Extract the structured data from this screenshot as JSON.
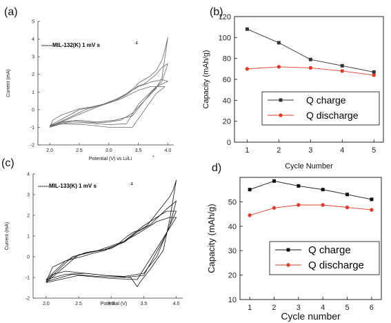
{
  "chart_data": [
    {
      "panel": "(a)",
      "type": "line",
      "legend": "------MIL-132(K) 1 mV s",
      "legend_sup": "-1",
      "xlabel": "Potential (V) vs Li/Li",
      "xlabel_sup": "+",
      "ylabel": "Current (mA)",
      "xlim": [
        1.8,
        4.1
      ],
      "ylim": [
        -2,
        5
      ],
      "xticks": [
        "2.0",
        "2.5",
        "3.0",
        "3.5",
        "4.0"
      ],
      "yticks": [
        "-2",
        "-1",
        "0",
        "1",
        "2",
        "3",
        "4",
        "5"
      ],
      "colors": {
        "curve": "#666666"
      },
      "series": [
        {
          "x": [
            2.5,
            2.7,
            2.9,
            3.1,
            3.3,
            3.45,
            3.5,
            3.6,
            3.7,
            3.8,
            3.9,
            3.95,
            4.0,
            3.9,
            3.8,
            3.6,
            3.4,
            3.2,
            3.0,
            2.8,
            2.6,
            2.4,
            2.2,
            2.05,
            2.0,
            2.05,
            2.2,
            2.5
          ],
          "y": [
            0.05,
            0.15,
            0.3,
            0.55,
            0.9,
            1.3,
            1.5,
            1.7,
            1.9,
            2.2,
            2.8,
            3.4,
            4.1,
            1.8,
            1.2,
            0.5,
            -0.2,
            -0.6,
            -0.7,
            -0.75,
            -0.7,
            -0.65,
            -0.75,
            -0.9,
            -1.0,
            -0.6,
            -0.3,
            0.05
          ]
        },
        {
          "x": [
            2.0,
            2.2,
            2.5,
            2.8,
            3.1,
            3.3,
            3.5,
            3.6,
            3.8,
            3.9,
            4.0,
            3.9,
            3.7,
            3.4,
            3.1,
            2.8,
            2.5,
            2.2,
            2.0
          ],
          "y": [
            -0.9,
            -0.55,
            0.0,
            0.2,
            0.5,
            0.85,
            1.35,
            1.45,
            2.0,
            2.4,
            2.6,
            1.6,
            0.9,
            -0.35,
            -0.6,
            -0.7,
            -0.6,
            -0.7,
            -0.9
          ]
        },
        {
          "x": [
            2.0,
            2.3,
            2.6,
            2.9,
            3.2,
            3.5,
            3.7,
            3.9,
            4.0,
            3.8,
            3.5,
            3.3,
            3.0,
            2.6,
            2.3,
            2.0
          ],
          "y": [
            -0.95,
            -0.5,
            0.0,
            0.3,
            0.7,
            1.3,
            1.55,
            1.7,
            1.6,
            1.3,
            0.3,
            -0.8,
            -0.85,
            -0.75,
            -0.75,
            -0.95
          ]
        },
        {
          "x": [
            2.0,
            2.4,
            2.8,
            3.2,
            3.5,
            3.7,
            3.95,
            3.8,
            3.4,
            3.0,
            2.6,
            2.2,
            2.0
          ],
          "y": [
            -1.0,
            -0.4,
            0.15,
            0.6,
            1.1,
            1.3,
            1.3,
            0.9,
            -1.0,
            -1.0,
            -0.85,
            -0.8,
            -1.0
          ]
        }
      ]
    },
    {
      "panel": "(b)",
      "type": "line",
      "xlabel": "Cycle Number",
      "ylabel": "Capacity (mAh/g)",
      "xlim": [
        0.6,
        5.3
      ],
      "ylim": [
        0,
        120
      ],
      "xticks": [
        "1",
        "2",
        "3",
        "4",
        "5"
      ],
      "yticks": [
        "0",
        "20",
        "40",
        "60",
        "80",
        "100",
        "120"
      ],
      "x": [
        1,
        2,
        3,
        4,
        5
      ],
      "series": [
        {
          "name": "Q charge",
          "values": [
            108,
            95,
            79,
            73,
            67
          ],
          "color": "#333333",
          "marker": "square"
        },
        {
          "name": "Q discharge",
          "values": [
            70,
            72,
            71,
            68,
            64
          ],
          "color": "#e03c2a",
          "marker": "circle"
        }
      ],
      "legend_position": "center"
    },
    {
      "panel": "(c)",
      "type": "line",
      "legend": "------MIL-133(K) 1 mV s",
      "legend_sup": "-1",
      "xlabel": "Potential (V)",
      "ylabel": "Current (mA)",
      "xlim": [
        1.8,
        4.1
      ],
      "ylim": [
        -2,
        4
      ],
      "xticks": [
        "2.0",
        "2.5",
        "3.0",
        "3.5",
        "4.0"
      ],
      "yticks": [
        "-2",
        "-1",
        "0",
        "1",
        "2",
        "3",
        "4"
      ],
      "colors": {
        "curve": "#111111"
      },
      "series": [
        {
          "x": [
            2.6,
            2.7,
            2.9,
            3.1,
            3.25,
            3.35,
            3.45,
            3.55,
            3.7,
            3.8,
            3.9,
            3.95,
            4.0,
            3.9,
            3.8,
            3.6,
            3.45,
            3.4,
            3.3,
            3.1,
            2.9,
            2.6,
            2.3,
            2.1,
            2.0,
            2.1,
            2.3,
            2.6
          ],
          "y": [
            0.05,
            0.15,
            0.3,
            0.6,
            1.0,
            1.2,
            1.3,
            1.5,
            2.1,
            2.5,
            2.9,
            3.2,
            3.7,
            1.8,
            0.3,
            -0.6,
            -1.2,
            -1.45,
            -1.0,
            -0.95,
            -0.9,
            -0.8,
            -0.7,
            -0.85,
            -1.2,
            -0.5,
            -0.2,
            0.05
          ]
        },
        {
          "x": [
            2.0,
            2.3,
            2.6,
            2.9,
            3.2,
            3.4,
            3.6,
            3.75,
            3.85,
            3.95,
            4.0,
            3.9,
            3.7,
            3.5,
            3.2,
            2.9,
            2.6,
            2.3,
            2.0
          ],
          "y": [
            -1.1,
            -0.2,
            0.2,
            0.35,
            0.7,
            1.2,
            1.55,
            2.0,
            2.3,
            2.55,
            2.7,
            1.5,
            0.0,
            -0.8,
            -0.95,
            -0.9,
            -0.8,
            -0.85,
            -1.1
          ]
        },
        {
          "x": [
            2.0,
            2.4,
            2.8,
            3.2,
            3.5,
            3.7,
            3.85,
            4.0,
            3.8,
            3.5,
            3.2,
            2.8,
            2.4,
            2.0
          ],
          "y": [
            -1.2,
            0.0,
            0.3,
            0.75,
            1.5,
            1.9,
            2.2,
            2.2,
            0.8,
            -0.9,
            -1.0,
            -0.95,
            -0.85,
            -1.2
          ]
        },
        {
          "x": [
            2.0,
            2.5,
            3.0,
            3.4,
            3.7,
            3.9,
            4.0,
            3.7,
            3.4,
            3.0,
            2.5,
            2.0
          ],
          "y": [
            -1.25,
            0.1,
            0.4,
            1.1,
            1.7,
            1.9,
            1.9,
            0.4,
            -1.1,
            -1.05,
            -0.9,
            -1.25
          ]
        }
      ]
    },
    {
      "panel": "d)",
      "type": "line",
      "xlabel": "Cycle number",
      "ylabel": "Capacity (mAh/g)",
      "xlim": [
        0.6,
        6.4
      ],
      "ylim": [
        10,
        60
      ],
      "xticks": [
        "1",
        "2",
        "3",
        "4",
        "5",
        "6"
      ],
      "yticks": [
        "10",
        "20",
        "30",
        "40",
        "50"
      ],
      "x": [
        1,
        2,
        3,
        4,
        5,
        6
      ],
      "series": [
        {
          "name": "Q charge",
          "values": [
            55,
            58.5,
            56.5,
            55,
            53,
            51
          ],
          "color": "#111111",
          "marker": "square"
        },
        {
          "name": "Q discharge",
          "values": [
            44.5,
            47.5,
            48.7,
            48.7,
            47.7,
            46.7
          ],
          "color": "#e03c2a",
          "marker": "circle"
        }
      ],
      "legend_position": "bottom-right"
    }
  ]
}
